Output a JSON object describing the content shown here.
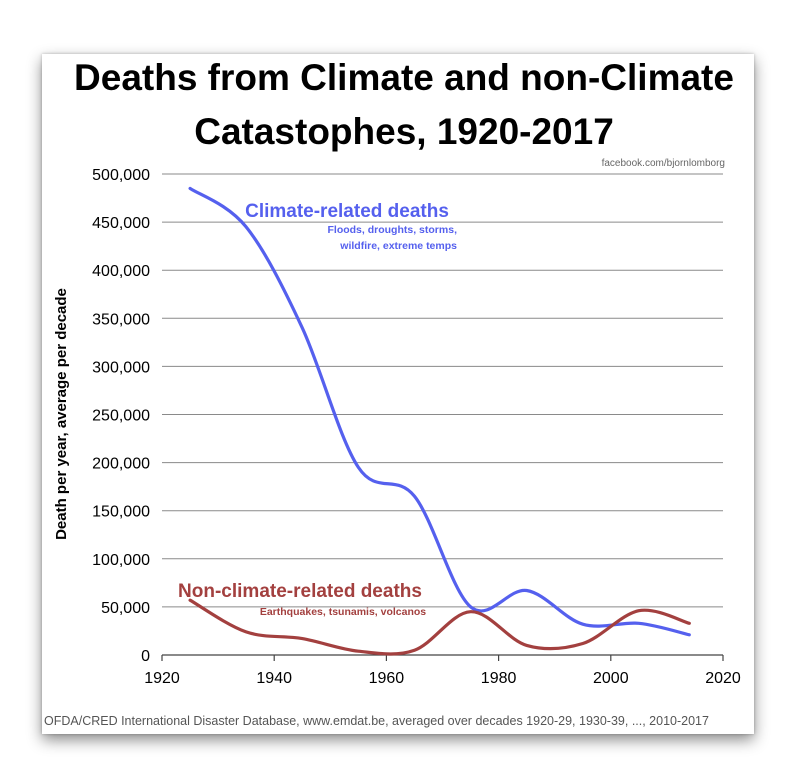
{
  "chart_data": {
    "type": "line",
    "title_lines": [
      "Deaths from Climate and non-Climate",
      "Catastophes, 1920-2017"
    ],
    "credit": "facebook.com/bjornlomborg",
    "ylabel": "Death per year, average per decade",
    "xlabel": "",
    "xlim": [
      1920,
      2020
    ],
    "ylim": [
      0,
      500000
    ],
    "x_ticks": [
      1920,
      1940,
      1960,
      1980,
      2000,
      2020
    ],
    "x_tick_labels": [
      "1920",
      "1940",
      "1960",
      "1980",
      "2000",
      "2020"
    ],
    "y_ticks": [
      0,
      50000,
      100000,
      150000,
      200000,
      250000,
      300000,
      350000,
      400000,
      450000,
      500000
    ],
    "y_tick_labels": [
      "0",
      "50,000",
      "100,000",
      "150,000",
      "200,000",
      "250,000",
      "300,000",
      "350,000",
      "400,000",
      "450,000",
      "500,000"
    ],
    "grid": "horizontal",
    "series": [
      {
        "name": "Climate-related deaths",
        "note_lines": [
          "Floods, droughts, storms,",
          "wildfire, extreme temps"
        ],
        "color": "#5560ee",
        "x": [
          1925,
          1935,
          1945,
          1955,
          1965,
          1975,
          1985,
          1995,
          2005,
          2014
        ],
        "y": [
          485000,
          445000,
          340000,
          195000,
          165000,
          50000,
          67000,
          32000,
          33000,
          21000
        ]
      },
      {
        "name": "Non-climate-related deaths",
        "note_lines": [
          "Earthquakes, tsunamis, volcanos"
        ],
        "color": "#a3403f",
        "x": [
          1925,
          1935,
          1945,
          1955,
          1965,
          1975,
          1985,
          1995,
          2005,
          2014
        ],
        "y": [
          57000,
          24000,
          17000,
          4000,
          5000,
          45000,
          10000,
          12000,
          46000,
          33000
        ]
      }
    ],
    "source": "OFDA/CRED International Disaster Database, www.emdat.be, averaged over decades 1920-29, 1930-39, ..., 2010-2017"
  }
}
